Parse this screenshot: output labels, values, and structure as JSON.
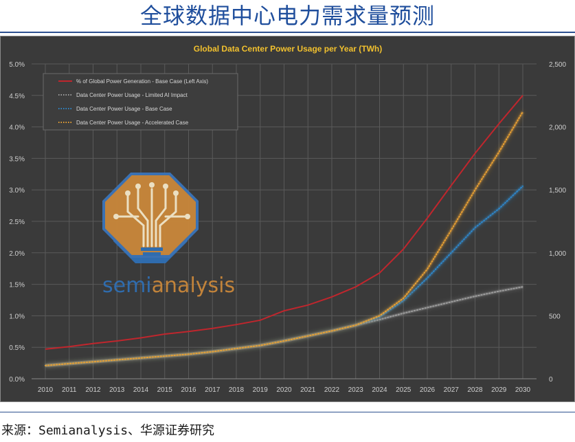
{
  "header": {
    "title": "全球数据中心电力需求量预测"
  },
  "footer": {
    "source": "来源：Semianalysis、华源证券研究"
  },
  "watermark": {
    "text_part1": "semi",
    "text_part2": "analysis"
  },
  "colors": {
    "background": "#3a3a3a",
    "plot": "#3d3d3d",
    "grid": "#5a5a5a",
    "title": "#f2c12e",
    "red": "#c0262d",
    "gray": "#9e9e9e",
    "blue": "#2e86c8",
    "orange": "#e8a033",
    "logo_orange": "#c8873a",
    "logo_blue": "#2f6fb3"
  },
  "chart_data": {
    "type": "line",
    "title": "Global Data Center Power Usage per Year (TWh)",
    "x": [
      2010,
      2011,
      2012,
      2013,
      2014,
      2015,
      2016,
      2017,
      2018,
      2019,
      2020,
      2021,
      2022,
      2023,
      2024,
      2025,
      2026,
      2027,
      2028,
      2029,
      2030
    ],
    "x_tick_labels": [
      "2010",
      "2011",
      "2012",
      "2013",
      "2014",
      "2015",
      "2016",
      "2017",
      "2018",
      "2019",
      "2020",
      "2021",
      "2022",
      "2023",
      "2024",
      "2025",
      "2026",
      "2027",
      "2028",
      "2029",
      "2030"
    ],
    "y_left": {
      "range": [
        0,
        5.0
      ],
      "ticks": [
        0,
        0.5,
        1.0,
        1.5,
        2.0,
        2.5,
        3.0,
        3.5,
        4.0,
        4.5,
        5.0
      ],
      "tick_labels": [
        "0.0%",
        "0.5%",
        "1.0%",
        "1.5%",
        "2.0%",
        "2.5%",
        "3.0%",
        "3.5%",
        "4.0%",
        "4.5%",
        "5.0%"
      ]
    },
    "y_right": {
      "range": [
        0,
        2500
      ],
      "ticks": [
        0,
        500,
        1000,
        1500,
        2000,
        2500
      ],
      "tick_labels": [
        "0",
        "500",
        "1,000",
        "1,500",
        "2,000",
        "2,500"
      ]
    },
    "grid": true,
    "legend_position": "top-left",
    "series": [
      {
        "name": "% of Global Power Generation - Base Case (Left Axis)",
        "axis": "left",
        "style": "solid",
        "color_key": "red",
        "values": [
          0.47,
          0.51,
          0.56,
          0.6,
          0.65,
          0.71,
          0.75,
          0.8,
          0.86,
          0.93,
          1.08,
          1.17,
          1.3,
          1.46,
          1.68,
          2.06,
          2.55,
          3.07,
          3.58,
          4.05,
          4.5
        ]
      },
      {
        "name": "Data Center Power Usage - Limited AI Impact",
        "axis": "right",
        "style": "dotted",
        "color_key": "gray",
        "values": [
          105,
          120,
          135,
          150,
          165,
          180,
          195,
          215,
          240,
          265,
          300,
          340,
          380,
          425,
          470,
          520,
          565,
          610,
          655,
          695,
          730
        ]
      },
      {
        "name": "Data Center Power Usage - Base Case",
        "axis": "right",
        "style": "dotted",
        "color_key": "blue",
        "values": [
          105,
          120,
          135,
          150,
          165,
          180,
          195,
          215,
          240,
          265,
          300,
          340,
          380,
          425,
          490,
          620,
          800,
          1000,
          1200,
          1350,
          1530
        ]
      },
      {
        "name": "Data Center Power Usage - Accelerated Case",
        "axis": "right",
        "style": "dotted",
        "color_key": "orange",
        "values": [
          105,
          120,
          135,
          150,
          165,
          180,
          195,
          215,
          240,
          265,
          300,
          340,
          380,
          425,
          500,
          640,
          870,
          1180,
          1500,
          1800,
          2120
        ]
      }
    ]
  }
}
